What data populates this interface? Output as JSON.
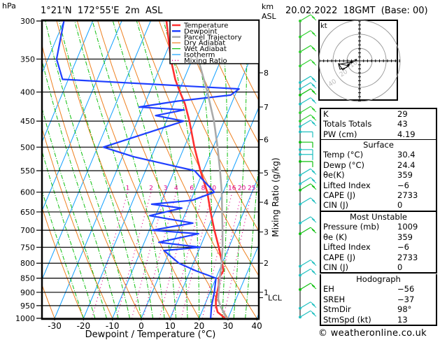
{
  "header": {
    "pressure_unit": "hPa",
    "location": "1°21'N  172°55'E  2m  ASL",
    "height_unit_line1": "km",
    "height_unit_line2": "ASL",
    "datetime": "20.02.2022  18GMT  (Base: 00)"
  },
  "chart_data": {
    "type": "line",
    "title": "Skew-T log-P sounding",
    "xlabel": "Dewpoint / Temperature (°C)",
    "ylabel": "hPa",
    "y2label": "Mixing Ratio (g/kg)",
    "xlim": [
      -35,
      40
    ],
    "ylim": [
      1000,
      300
    ],
    "x_ticks": [
      "-30",
      "-20",
      "-10",
      "0",
      "10",
      "20",
      "30",
      "40"
    ],
    "x_tick_values": [
      -30,
      -20,
      -10,
      0,
      10,
      20,
      30,
      40
    ],
    "pressure_ticks": [
      300,
      350,
      400,
      450,
      500,
      550,
      600,
      650,
      700,
      750,
      800,
      850,
      900,
      950,
      1000
    ],
    "height_ticks_km": [
      {
        "label": "8",
        "p": 370
      },
      {
        "label": "7",
        "p": 425
      },
      {
        "label": "6",
        "p": 485
      },
      {
        "label": "5",
        "p": 555
      },
      {
        "label": "4",
        "p": 625
      },
      {
        "label": "3",
        "p": 705
      },
      {
        "label": "2",
        "p": 800
      },
      {
        "label": "1",
        "p": 900
      },
      {
        "label": "LCL",
        "p": 920
      }
    ],
    "mixing_ratio_labels": [
      "1",
      "2",
      "3",
      "4",
      "6",
      "8",
      "10",
      "16",
      "20",
      "25"
    ],
    "mixing_ratio_values": [
      1,
      2,
      3,
      4,
      6,
      8,
      10,
      16,
      20,
      25
    ],
    "legend": {
      "position": "top-right",
      "entries": [
        {
          "name": "Temperature",
          "color": "#ff3030"
        },
        {
          "name": "Dewpoint",
          "color": "#2040ff"
        },
        {
          "name": "Parcel Trajectory",
          "color": "#aaaaaa"
        },
        {
          "name": "Dry Adiabat",
          "color": "#ee8020"
        },
        {
          "name": "Wet Adiabat",
          "color": "#10c010"
        },
        {
          "name": "Isotherm",
          "color": "#10a0ff"
        },
        {
          "name": "Mixing Ratio",
          "color": "#e0008a"
        }
      ]
    },
    "series": [
      {
        "name": "Temperature",
        "points": [
          [
            1009,
            30.4
          ],
          [
            1000,
            29.0
          ],
          [
            975,
            25.5
          ],
          [
            950,
            24.0
          ],
          [
            925,
            23.0
          ],
          [
            900,
            22.5
          ],
          [
            875,
            22.0
          ],
          [
            850,
            21.0
          ],
          [
            825,
            21.5
          ],
          [
            800,
            20.0
          ],
          [
            750,
            16.5
          ],
          [
            700,
            12.5
          ],
          [
            650,
            8.5
          ],
          [
            600,
            4.5
          ],
          [
            550,
            -1.0
          ],
          [
            500,
            -6.5
          ],
          [
            450,
            -12.0
          ],
          [
            420,
            -16.0
          ],
          [
            400,
            -19.5
          ],
          [
            380,
            -23.0
          ],
          [
            350,
            -27.5
          ],
          [
            300,
            -34.5
          ]
        ]
      },
      {
        "name": "Dewpoint",
        "points": [
          [
            1009,
            24.4
          ],
          [
            1000,
            24.0
          ],
          [
            950,
            22.5
          ],
          [
            900,
            21.5
          ],
          [
            850,
            20.0
          ],
          [
            825,
            12.0
          ],
          [
            800,
            5.0
          ],
          [
            760,
            -2.0
          ],
          [
            750,
            10.0
          ],
          [
            735,
            -5.0
          ],
          [
            710,
            7.5
          ],
          [
            700,
            -9.0
          ],
          [
            680,
            4.0
          ],
          [
            660,
            -12.0
          ],
          [
            640,
            -2.0
          ],
          [
            630,
            -13.0
          ],
          [
            620,
            0.5
          ],
          [
            600,
            7.0
          ],
          [
            570,
            1.0
          ],
          [
            550,
            -3.0
          ],
          [
            520,
            -26.0
          ],
          [
            500,
            -38.0
          ],
          [
            450,
            -14.0
          ],
          [
            440,
            -24.5
          ],
          [
            430,
            -15.5
          ],
          [
            425,
            -31.5
          ],
          [
            415,
            -19.0
          ],
          [
            405,
            -1.5
          ],
          [
            395,
            0.5
          ],
          [
            380,
            -62.0
          ],
          [
            350,
            -67.0
          ],
          [
            300,
            -70.0
          ]
        ]
      },
      {
        "name": "Parcel Trajectory",
        "points": [
          [
            1009,
            30.4
          ],
          [
            1000,
            29.5
          ],
          [
            950,
            25.5
          ],
          [
            925,
            23.8
          ],
          [
            900,
            23.0
          ],
          [
            850,
            21.3
          ],
          [
            800,
            19.8
          ],
          [
            750,
            17.8
          ],
          [
            700,
            15.3
          ],
          [
            650,
            12.5
          ],
          [
            600,
            9.5
          ],
          [
            550,
            5.8
          ],
          [
            500,
            1.5
          ],
          [
            450,
            -3.5
          ],
          [
            400,
            -10.0
          ],
          [
            350,
            -18.0
          ],
          [
            300,
            -27.0
          ]
        ]
      }
    ]
  },
  "hodograph": {
    "unit_label": "kt",
    "ring_labels": [
      "10",
      "20",
      "40"
    ]
  },
  "wind_barbs": {
    "levels_hpa": [
      300,
      320,
      340,
      360,
      385,
      395,
      405,
      420,
      435,
      450,
      460,
      470,
      490,
      505,
      515,
      530,
      560,
      580,
      595,
      630,
      680,
      710,
      810,
      840,
      890,
      960,
      995
    ]
  },
  "indices": {
    "rows": [
      {
        "label": "K",
        "value": "29"
      },
      {
        "label": "Totals Totals",
        "value": "43"
      },
      {
        "label": "PW (cm)",
        "value": "4.19"
      }
    ]
  },
  "surface": {
    "title": "Surface",
    "rows": [
      {
        "label": "Temp (°C)",
        "value": "30.4"
      },
      {
        "label": "Dewp (°C)",
        "value": "24.4"
      },
      {
        "label": "θe(K)",
        "value": "359"
      },
      {
        "label": "Lifted Index",
        "value": "−6"
      },
      {
        "label": "CAPE (J)",
        "value": "2733"
      },
      {
        "label": "CIN (J)",
        "value": "0"
      }
    ]
  },
  "most_unstable": {
    "title": "Most Unstable",
    "rows": [
      {
        "label": "Pressure (mb)",
        "value": "1009"
      },
      {
        "label": "θe (K)",
        "value": "359"
      },
      {
        "label": "Lifted Index",
        "value": "−6"
      },
      {
        "label": "CAPE (J)",
        "value": "2733"
      },
      {
        "label": "CIN (J)",
        "value": "0"
      }
    ]
  },
  "hodograph_stats": {
    "title": "Hodograph",
    "rows": [
      {
        "label": "EH",
        "value": "−56"
      },
      {
        "label": "SREH",
        "value": "−37"
      },
      {
        "label": "StmDir",
        "value": "98°"
      },
      {
        "label": "StmSpd (kt)",
        "value": "13"
      }
    ]
  },
  "footer": {
    "copyright": "© weatheronline.co.uk"
  }
}
